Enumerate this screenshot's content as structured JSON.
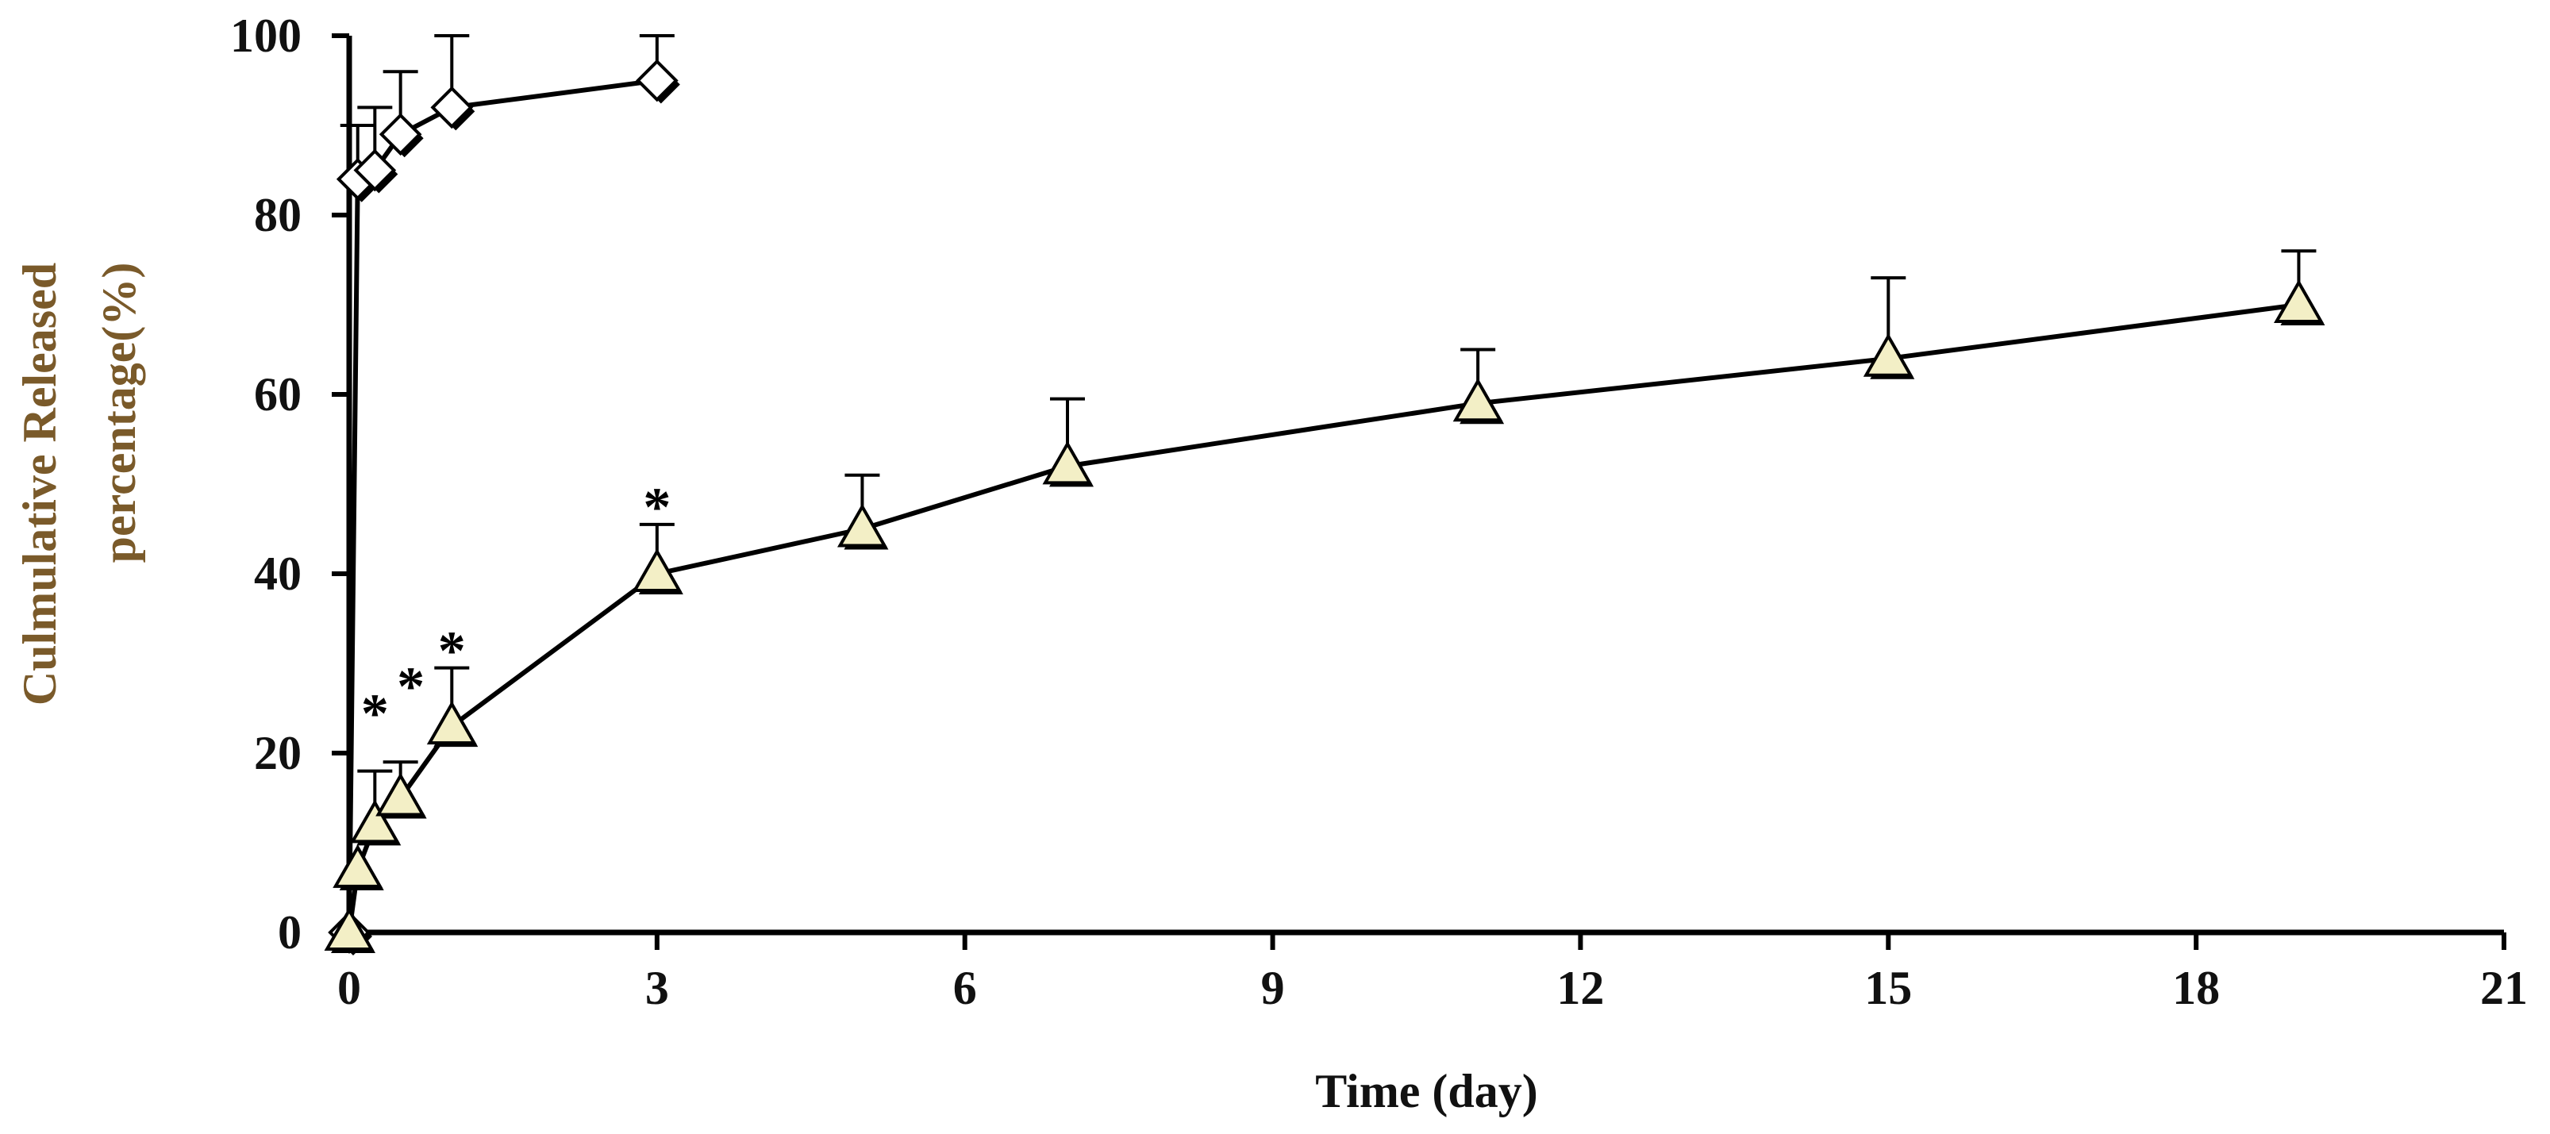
{
  "chart_data": {
    "type": "line",
    "title": "",
    "xlabel": "Time (day)",
    "ylabel_lines": [
      "Culmulative Released",
      "percentage(%)"
    ],
    "xlim": [
      0,
      21
    ],
    "ylim": [
      0,
      100
    ],
    "xticks": [
      0,
      3,
      6,
      9,
      12,
      15,
      18,
      21
    ],
    "yticks": [
      0,
      20,
      40,
      60,
      80,
      100
    ],
    "grid": false,
    "legend": "none",
    "series": [
      {
        "marker": "diamond",
        "marker_fill": "#ffffff",
        "x": [
          0,
          0.083,
          0.25,
          0.5,
          1,
          3
        ],
        "y": [
          0,
          84,
          85,
          89,
          92,
          95
        ],
        "error": [
          0,
          6,
          7,
          7,
          8,
          5
        ]
      },
      {
        "marker": "triangle",
        "marker_fill": "#f3efc6",
        "x": [
          0,
          0.083,
          0.25,
          0.5,
          1,
          3,
          5,
          7,
          11,
          15,
          19
        ],
        "y": [
          0,
          7,
          12,
          15,
          23,
          40,
          45,
          52,
          59,
          64,
          70
        ],
        "error": [
          0,
          0,
          6,
          4,
          6.5,
          5.5,
          6,
          7.5,
          6,
          9,
          6
        ]
      }
    ],
    "annotations": [
      {
        "text": "*",
        "x": 0.25,
        "y": 25
      },
      {
        "text": "*",
        "x": 0.6,
        "y": 28
      },
      {
        "text": "*",
        "x": 1.0,
        "y": 32
      },
      {
        "text": "*",
        "x": 3.0,
        "y": 48
      }
    ],
    "colors": {
      "axis": "#000000",
      "ylabel": "#7a5a2a",
      "xlabel": "#111111",
      "line": "#000000"
    }
  }
}
